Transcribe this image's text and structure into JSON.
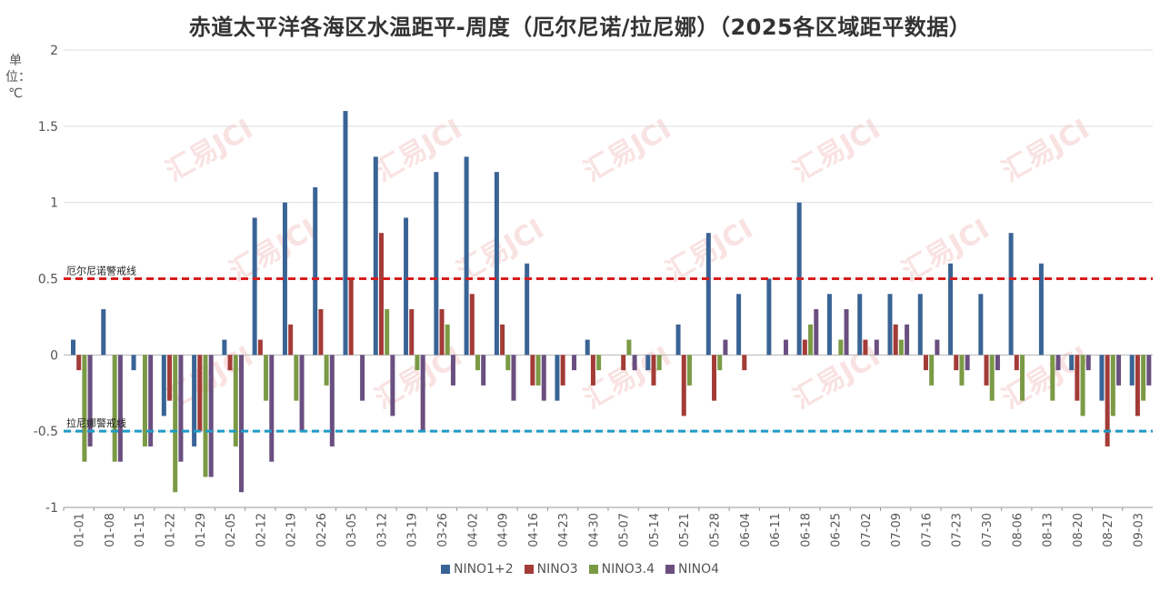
{
  "chart_data": {
    "type": "bar",
    "title": "赤道太平洋各海区水温距平-周度（厄尔尼诺/拉尼娜）（2025各区域距平数据）",
    "ylabel": "单位：℃",
    "xlabel": "",
    "ylim": [
      -1,
      2
    ],
    "yticks": [
      2,
      1.5,
      1,
      0.5,
      0,
      -0.5,
      -1
    ],
    "grid": true,
    "legend_position": "bottom",
    "watermark": "汇易JCI",
    "categories": [
      "01-01",
      "01-08",
      "01-15",
      "01-22",
      "01-29",
      "02-05",
      "02-12",
      "02-19",
      "02-26",
      "03-05",
      "03-12",
      "03-19",
      "03-26",
      "04-02",
      "04-09",
      "04-16",
      "04-23",
      "04-30",
      "05-07",
      "05-14",
      "05-21",
      "05-28",
      "06-04",
      "06-11",
      "06-18",
      "06-25",
      "07-02",
      "07-09",
      "07-16",
      "07-23",
      "07-30",
      "08-06",
      "08-13",
      "08-20",
      "08-27",
      "09-03"
    ],
    "series": [
      {
        "name": "NINO1+2",
        "color": "#3A6495",
        "values": [
          0.1,
          0.3,
          -0.1,
          -0.4,
          -0.6,
          0.1,
          0.9,
          1.0,
          1.1,
          1.6,
          1.3,
          0.9,
          1.2,
          1.3,
          1.2,
          0.6,
          -0.3,
          0.1,
          0,
          -0.1,
          0.2,
          0.8,
          0.4,
          0.5,
          1.0,
          0.4,
          0.4,
          0.4,
          0.4,
          0.6,
          0.4,
          0.8,
          0.6,
          -0.1,
          -0.3,
          -0.2
        ]
      },
      {
        "name": "NINO3",
        "color": "#A33B37",
        "values": [
          -0.1,
          0,
          0,
          -0.3,
          -0.5,
          -0.1,
          0.1,
          0.2,
          0.3,
          0.5,
          0.8,
          0.3,
          0.3,
          0.4,
          0.2,
          -0.2,
          -0.2,
          -0.2,
          -0.1,
          -0.2,
          -0.4,
          -0.3,
          -0.1,
          0,
          0.1,
          0,
          0.1,
          0.2,
          -0.1,
          -0.1,
          -0.2,
          -0.1,
          0,
          -0.3,
          -0.6,
          -0.4
        ]
      },
      {
        "name": "NINO3.4",
        "color": "#7B9A45",
        "values": [
          -0.7,
          -0.7,
          -0.6,
          -0.9,
          -0.8,
          -0.6,
          -0.3,
          -0.3,
          -0.2,
          0,
          0.3,
          -0.1,
          0.2,
          -0.1,
          -0.1,
          -0.2,
          0,
          -0.1,
          0.1,
          -0.1,
          -0.2,
          -0.1,
          0,
          0,
          0.2,
          0.1,
          0,
          0.1,
          -0.2,
          -0.2,
          -0.3,
          -0.3,
          -0.3,
          -0.4,
          -0.4,
          -0.3
        ]
      },
      {
        "name": "NINO4",
        "color": "#6A4F80",
        "values": [
          -0.6,
          -0.7,
          -0.6,
          -0.7,
          -0.8,
          -0.9,
          -0.7,
          -0.5,
          -0.6,
          -0.3,
          -0.4,
          -0.5,
          -0.2,
          -0.2,
          -0.3,
          -0.3,
          -0.1,
          0,
          -0.1,
          0,
          0,
          0.1,
          0,
          0.1,
          0.3,
          0.3,
          0.1,
          0.2,
          0.1,
          -0.1,
          -0.1,
          0,
          -0.1,
          -0.1,
          -0.2,
          -0.2
        ]
      }
    ],
    "reference_lines": [
      {
        "label": "厄尔尼诺警戒线",
        "value": 0.5,
        "color": "#D81E1E"
      },
      {
        "label": "拉尼娜警戒线",
        "value": -0.5,
        "color": "#1E9BC7"
      }
    ]
  }
}
